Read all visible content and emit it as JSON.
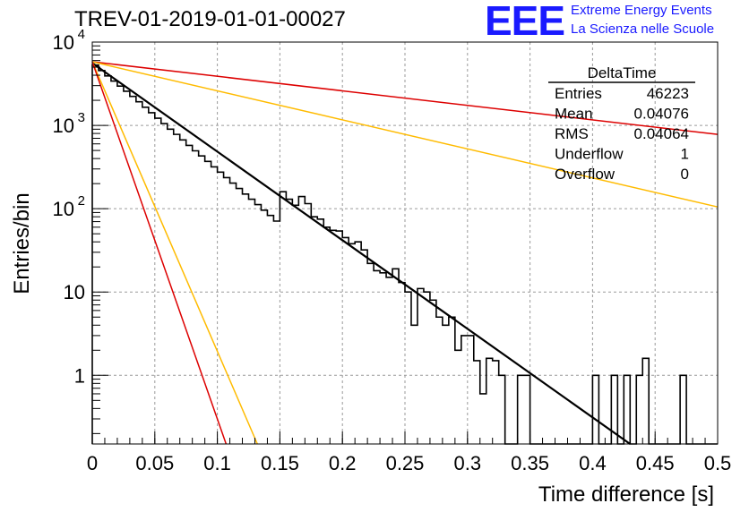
{
  "header": {
    "title": "TREV-01-2019-01-01-00027",
    "logo_text": "EEE",
    "logo_line1": "Extreme Energy Events",
    "logo_line2": "La Scienza nelle Scuole",
    "logo_color": "#1a1aff"
  },
  "stats": {
    "name": "DeltaTime",
    "rows": [
      {
        "label": "Entries",
        "value": "46223"
      },
      {
        "label": "Mean",
        "value": "0.04076"
      },
      {
        "label": "RMS",
        "value": "0.04064"
      },
      {
        "label": "Underflow",
        "value": "1"
      },
      {
        "label": "Overflow",
        "value": "0"
      }
    ]
  },
  "chart_data": {
    "type": "histogram",
    "title": "TREV-01-2019-01-01-00027",
    "xlabel": "Time difference [s]",
    "ylabel": "Entries/bin",
    "xlim": [
      0,
      0.5
    ],
    "ylim": [
      0.15,
      10000
    ],
    "log_y": true,
    "grid": true,
    "x_ticks": [
      {
        "v": 0,
        "label": "0"
      },
      {
        "v": 0.05,
        "label": "0.05"
      },
      {
        "v": 0.1,
        "label": "0.1"
      },
      {
        "v": 0.15,
        "label": "0.15"
      },
      {
        "v": 0.2,
        "label": "0.2"
      },
      {
        "v": 0.25,
        "label": "0.25"
      },
      {
        "v": 0.3,
        "label": "0.3"
      },
      {
        "v": 0.35,
        "label": "0.35"
      },
      {
        "v": 0.4,
        "label": "0.4"
      },
      {
        "v": 0.45,
        "label": "0.45"
      },
      {
        "v": 0.5,
        "label": "0.5"
      }
    ],
    "y_ticks": [
      {
        "v": 1,
        "label": "1"
      },
      {
        "v": 10,
        "label": "10"
      },
      {
        "v": 100,
        "label": "10",
        "exp": "2"
      },
      {
        "v": 1000,
        "label": "10",
        "exp": "3"
      },
      {
        "v": 10000,
        "label": "10",
        "exp": "4"
      }
    ],
    "bin_width": 0.005,
    "histogram": [
      5300,
      4550,
      3920,
      3400,
      2960,
      2570,
      2230,
      1920,
      1650,
      1420,
      1220,
      1050,
      900,
      780,
      670,
      575,
      495,
      430,
      370,
      318,
      275,
      236,
      203,
      175,
      150,
      130,
      112,
      96,
      83,
      71,
      62,
      53,
      46,
      40,
      34,
      29,
      25,
      22,
      19,
      16,
      17,
      14,
      12,
      10.5,
      9.1,
      7.8,
      6.8,
      5.9,
      5.1,
      4.4,
      3.8,
      3.3,
      2.8,
      2.4,
      2.1,
      1.8,
      1.55,
      1.35,
      1.15,
      1.0,
      0.9,
      0.8,
      0.7,
      0.6,
      0.5,
      0.45,
      0.4,
      0.35,
      0.3,
      0.25,
      0.2,
      0.18,
      0.16,
      0.15,
      0.15,
      0.15,
      0.15,
      0.15,
      0.15,
      0.15,
      0.15,
      0.15,
      0.15,
      0.15,
      0.15,
      0.15,
      0.15,
      0.15,
      0.15,
      0.15,
      0.15,
      0.15,
      0.15,
      0.15,
      0.15,
      0.15,
      0.15,
      0.15,
      0.15,
      0.15
    ],
    "histogram_bin_width_fine": 0.005,
    "histogram_overrides": [
      {
        "x0": 0.15,
        "v": 160
      },
      {
        "x0": 0.155,
        "v": 130
      },
      {
        "x0": 0.16,
        "v": 110
      },
      {
        "x0": 0.165,
        "v": 140
      },
      {
        "x0": 0.17,
        "v": 115
      },
      {
        "x0": 0.175,
        "v": 80
      },
      {
        "x0": 0.18,
        "v": 75
      },
      {
        "x0": 0.185,
        "v": 60
      },
      {
        "x0": 0.19,
        "v": 55
      },
      {
        "x0": 0.195,
        "v": 54
      },
      {
        "x0": 0.2,
        "v": 45
      },
      {
        "x0": 0.205,
        "v": 38
      },
      {
        "x0": 0.21,
        "v": 40
      },
      {
        "x0": 0.215,
        "v": 32
      },
      {
        "x0": 0.22,
        "v": 22
      },
      {
        "x0": 0.225,
        "v": 18
      },
      {
        "x0": 0.23,
        "v": 17
      },
      {
        "x0": 0.235,
        "v": 15
      },
      {
        "x0": 0.24,
        "v": 19
      },
      {
        "x0": 0.245,
        "v": 13
      },
      {
        "x0": 0.25,
        "v": 10
      },
      {
        "x0": 0.255,
        "v": 4
      },
      {
        "x0": 0.26,
        "v": 11
      },
      {
        "x0": 0.265,
        "v": 10
      },
      {
        "x0": 0.27,
        "v": 8
      },
      {
        "x0": 0.275,
        "v": 5
      },
      {
        "x0": 0.28,
        "v": 4
      },
      {
        "x0": 0.285,
        "v": 5
      },
      {
        "x0": 0.29,
        "v": 2
      },
      {
        "x0": 0.295,
        "v": 3
      },
      {
        "x0": 0.3,
        "v": 3
      },
      {
        "x0": 0.305,
        "v": 1.5
      },
      {
        "x0": 0.31,
        "v": 0.6
      },
      {
        "x0": 0.315,
        "v": 1.6
      },
      {
        "x0": 0.32,
        "v": 1.5
      },
      {
        "x0": 0.325,
        "v": 1.0
      },
      {
        "x0": 0.33,
        "v": 0.15
      },
      {
        "x0": 0.335,
        "v": 0.15
      },
      {
        "x0": 0.34,
        "v": 1.0
      },
      {
        "x0": 0.345,
        "v": 1.0
      },
      {
        "x0": 0.35,
        "v": 0.15
      },
      {
        "x0": 0.355,
        "v": 0.15
      },
      {
        "x0": 0.36,
        "v": 0.15
      },
      {
        "x0": 0.365,
        "v": 0.15
      },
      {
        "x0": 0.37,
        "v": 0.15
      },
      {
        "x0": 0.375,
        "v": 0.15
      },
      {
        "x0": 0.38,
        "v": 0.15
      },
      {
        "x0": 0.385,
        "v": 0.15
      },
      {
        "x0": 0.39,
        "v": 0.15
      },
      {
        "x0": 0.395,
        "v": 0.15
      },
      {
        "x0": 0.4,
        "v": 1.0
      },
      {
        "x0": 0.405,
        "v": 0.15
      },
      {
        "x0": 0.41,
        "v": 0.15
      },
      {
        "x0": 0.415,
        "v": 1.0
      },
      {
        "x0": 0.42,
        "v": 0.15
      },
      {
        "x0": 0.425,
        "v": 1.0
      },
      {
        "x0": 0.43,
        "v": 0.15
      },
      {
        "x0": 0.435,
        "v": 1.0
      },
      {
        "x0": 0.44,
        "v": 1.6
      },
      {
        "x0": 0.445,
        "v": 0.15
      },
      {
        "x0": 0.45,
        "v": 0.15
      },
      {
        "x0": 0.455,
        "v": 0.15
      },
      {
        "x0": 0.46,
        "v": 0.15
      },
      {
        "x0": 0.465,
        "v": 0.15
      },
      {
        "x0": 0.47,
        "v": 1.0
      },
      {
        "x0": 0.475,
        "v": 0.15
      }
    ],
    "fit_lines": [
      {
        "color": "#000000",
        "width": 2.2,
        "y0": 5600,
        "x1": 0.43,
        "y1": 0.15
      },
      {
        "color": "#dd0000",
        "width": 1.5,
        "y0": 5800,
        "x1": 0.5,
        "y1": 780
      },
      {
        "color": "#ffbb00",
        "width": 1.5,
        "y0": 5800,
        "x1": 0.5,
        "y1": 105
      },
      {
        "color": "#ffbb00",
        "width": 1.5,
        "y0": 5800,
        "x1": 0.132,
        "y1": 0.15
      },
      {
        "color": "#dd0000",
        "width": 1.5,
        "y0": 5800,
        "x1": 0.107,
        "y1": 0.15
      }
    ]
  }
}
